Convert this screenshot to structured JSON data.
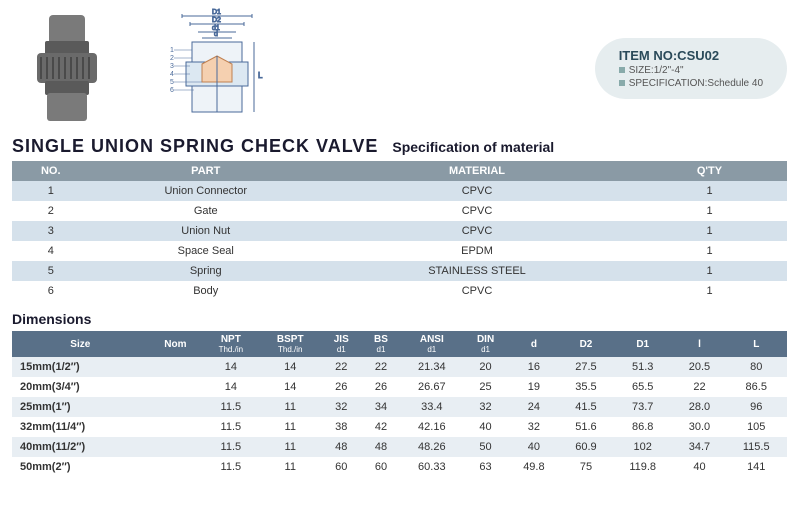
{
  "item": {
    "no_label": "ITEM NO:CSU02",
    "size_label": "SIZE:1/2\"-4\"",
    "spec_label": "SPECIFICATION:Schedule 40"
  },
  "titles": {
    "main": "SINGLE  UNION  SPRING  CHECK  VALVE",
    "spec": "Specification of material",
    "dim": "Dimensions"
  },
  "mat": {
    "headers": [
      "NO.",
      "PART",
      "MATERIAL",
      "Q'TY"
    ],
    "rows": [
      [
        "1",
        "Union  Connector",
        "CPVC",
        "1"
      ],
      [
        "2",
        "Gate",
        "CPVC",
        "1"
      ],
      [
        "3",
        "Union  Nut",
        "CPVC",
        "1"
      ],
      [
        "4",
        "Space  Seal",
        "EPDM",
        "1"
      ],
      [
        "5",
        "Spring",
        "STAINLESS STEEL",
        "1"
      ],
      [
        "6",
        "Body",
        "CPVC",
        "1"
      ]
    ],
    "header_bg": "#8a9aa5",
    "odd_bg": "#d5e1eb",
    "even_bg": "#ffffff",
    "col_widths": [
      "10%",
      "30%",
      "40%",
      "20%"
    ]
  },
  "dim": {
    "headers": [
      {
        "t": "Size",
        "s": ""
      },
      {
        "t": "Nom",
        "s": ""
      },
      {
        "t": "NPT",
        "s": "Thd./in"
      },
      {
        "t": "BSPT",
        "s": "Thd./in"
      },
      {
        "t": "JIS",
        "s": "d1"
      },
      {
        "t": "BS",
        "s": "d1"
      },
      {
        "t": "ANSI",
        "s": "d1"
      },
      {
        "t": "DIN",
        "s": "d1"
      },
      {
        "t": "d",
        "s": ""
      },
      {
        "t": "D2",
        "s": ""
      },
      {
        "t": "D1",
        "s": ""
      },
      {
        "t": "l",
        "s": ""
      },
      {
        "t": "L",
        "s": ""
      }
    ],
    "rows": [
      [
        "15mm(1/2″)",
        "",
        "14",
        "14",
        "22",
        "22",
        "21.34",
        "20",
        "16",
        "27.5",
        "51.3",
        "20.5",
        "80"
      ],
      [
        "20mm(3/4″)",
        "",
        "14",
        "14",
        "26",
        "26",
        "26.67",
        "25",
        "19",
        "35.5",
        "65.5",
        "22",
        "86.5"
      ],
      [
        "25mm(1″)",
        "",
        "11.5",
        "11",
        "32",
        "34",
        "33.4",
        "32",
        "24",
        "41.5",
        "73.7",
        "28.0",
        "96"
      ],
      [
        "32mm(11/4″)",
        "",
        "11.5",
        "11",
        "38",
        "42",
        "42.16",
        "40",
        "32",
        "51.6",
        "86.8",
        "30.0",
        "105"
      ],
      [
        "40mm(11/2″)",
        "",
        "11.5",
        "11",
        "48",
        "48",
        "48.26",
        "50",
        "40",
        "60.9",
        "102",
        "34.7",
        "115.5"
      ],
      [
        "50mm(2″)",
        "",
        "11.5",
        "11",
        "60",
        "60",
        "60.33",
        "63",
        "49.8",
        "75",
        "119.8",
        "40",
        "141"
      ]
    ],
    "header_bg": "#597088",
    "alt_bg": "#e8eef3"
  },
  "diagram_labels": [
    "D1",
    "D2",
    "d1",
    "d",
    "L"
  ],
  "diagram_numbers": [
    "1",
    "2",
    "3",
    "4",
    "5",
    "6"
  ]
}
